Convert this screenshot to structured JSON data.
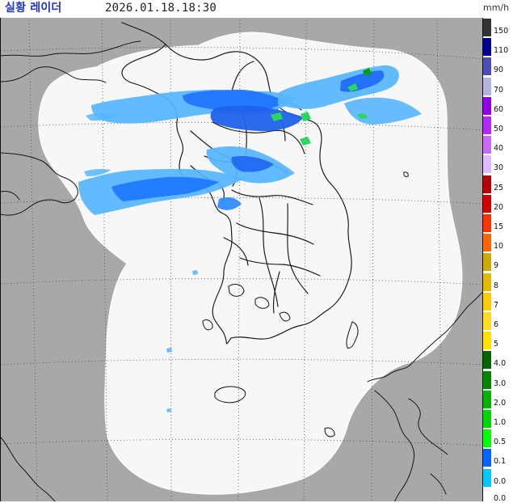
{
  "header": {
    "title": "실황 레이더",
    "timestamp": "2026.01.18.18:30",
    "unit": "mm/h"
  },
  "legend": {
    "items": [
      {
        "label": "150",
        "color": "#333333"
      },
      {
        "label": "110",
        "color": "#000390"
      },
      {
        "label": "90",
        "color": "#4c4eb1"
      },
      {
        "label": "70",
        "color": "#b3b4de"
      },
      {
        "label": "60",
        "color": "#9300e4"
      },
      {
        "label": "50",
        "color": "#b229ff"
      },
      {
        "label": "40",
        "color": "#c969ff"
      },
      {
        "label": "30",
        "color": "#e0b9ff"
      },
      {
        "label": "25",
        "color": "#b40000"
      },
      {
        "label": "20",
        "color": "#d20000"
      },
      {
        "label": "15",
        "color": "#ff3300"
      },
      {
        "label": "10",
        "color": "#ff6600"
      },
      {
        "label": "9",
        "color": "#ccaa00"
      },
      {
        "label": "8",
        "color": "#e0b900"
      },
      {
        "label": "7",
        "color": "#f9cd00"
      },
      {
        "label": "6",
        "color": "#ffdc1f"
      },
      {
        "label": "5",
        "color": "#ffe100"
      },
      {
        "label": "4.0",
        "color": "#006600"
      },
      {
        "label": "3.0",
        "color": "#008800"
      },
      {
        "label": "2.0",
        "color": "#00b400"
      },
      {
        "label": "1.0",
        "color": "#00d700"
      },
      {
        "label": "0.5",
        "color": "#00ff00"
      },
      {
        "label": "0.1",
        "color": "#0066ff"
      },
      {
        "label": "0.0",
        "color": "#00c8ff"
      }
    ],
    "bottom_label": "0.0"
  }
}
